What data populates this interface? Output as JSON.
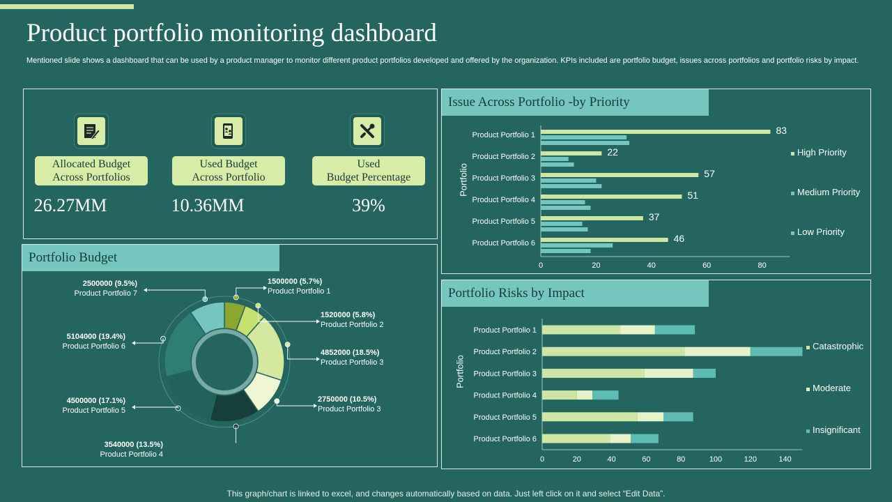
{
  "page": {
    "title": "Product portfolio monitoring dashboard",
    "subtitle": "Mentioned slide shows a dashboard that can be used by a product manager to monitor different product portfolios developed and offered by the organization. KPIs included are portfolio budget, issues across portfolios and portfolio risks by impact.",
    "footer": "This graph/chart is linked to excel,  and changes automatically based on data. Just left click on it and select “Edit Data”."
  },
  "kpis": [
    {
      "icon": "document-edit-icon",
      "label": "Allocated Budget\nAcross Portfolios",
      "value": "26.27MM"
    },
    {
      "icon": "mobile-users-icon",
      "label": "Used Budget\nAcross Portfolio",
      "value": "10.36MM"
    },
    {
      "icon": "tools-icon",
      "label": "Used\nBudget Percentage",
      "value": "39%"
    }
  ],
  "panels": {
    "portfolio_budget": "Portfolio Budget",
    "issues": "Issue Across Portfolio -by Priority",
    "risks": "Portfolio Risks by Impact"
  },
  "colors": {
    "background": "#256560",
    "header": "#74c6bf",
    "high": "#cde6a3",
    "medium": "#74c6bf",
    "low": "#74c6bf",
    "catastrophic": "#cde6a3",
    "moderate": "#e6f2c8",
    "insignificant": "#5fbcb4"
  },
  "chart_data": [
    {
      "type": "pie",
      "title": "Portfolio Budget",
      "slices": [
        {
          "value": 1500000,
          "pct": "5.7%",
          "label": "1500000 (5.7%)",
          "name": "Product Portfolio 1",
          "color": "#8aa62e"
        },
        {
          "value": 1520000,
          "pct": "5.8%",
          "label": "1520000 (5.8%)",
          "name": "Product Portfolio 2",
          "color": "#c5e06c"
        },
        {
          "value": 4852000,
          "pct": "18.5%",
          "label": "4852000 (18.5%)",
          "name": "Product Portfolio 3",
          "color": "#d4e8a0"
        },
        {
          "value": 2750000,
          "pct": "10.5%",
          "label": "2750000 (10.5%)",
          "name": "Product Portfolio 3",
          "color": "#eef6d4"
        },
        {
          "value": 3540000,
          "pct": "13.5%",
          "label": "3540000 (13.5%)",
          "name": "Product Portfolio 4",
          "color": "#163e3a"
        },
        {
          "value": 4500000,
          "pct": "17.1%",
          "label": "4500000 (17.1%)",
          "name": "Product Portfolio 5",
          "color": "#21625b"
        },
        {
          "value": 5104000,
          "pct": "19.4%",
          "label": "5104000 (19.4%)",
          "name": "Product Portfolio 6",
          "color": "#2f7e75"
        },
        {
          "value": 2500000,
          "pct": "9.5%",
          "label": "2500000 (9.5%)",
          "name": "Product Portfolio 7",
          "color": "#74c6bf"
        }
      ]
    },
    {
      "type": "bar",
      "orientation": "horizontal",
      "title": "Issue Across Portfolio -by Priority",
      "ylabel": "Portfolio",
      "categories": [
        "Product Portfolio 1",
        "Product Portfolio 2",
        "Product Portfolio 3",
        "Product Portfolio 4",
        "Product Portfolio 5",
        "Product Portfolio 6"
      ],
      "series": [
        {
          "name": "High Priority",
          "values": [
            83,
            22,
            57,
            51,
            37,
            46
          ],
          "labels": [
            "83",
            "22",
            "57",
            "51",
            "37",
            "46"
          ],
          "color": "#cde6a3"
        },
        {
          "name": "Medium Priority",
          "values": [
            31,
            10,
            20,
            16,
            15,
            26
          ],
          "color": "#74c6bf"
        },
        {
          "name": "Low Priority",
          "values": [
            32,
            12,
            22,
            18,
            17,
            18
          ],
          "color": "#74c6bf"
        }
      ],
      "xticks": [
        "0",
        "20",
        "40",
        "60",
        "80"
      ],
      "xlim": [
        0,
        90
      ]
    },
    {
      "type": "bar",
      "orientation": "horizontal",
      "stacked": true,
      "title": "Portfolio Risks by Impact",
      "ylabel": "Portfolio",
      "categories": [
        "Product Portfolio 1",
        "Product Portfolio 2",
        "Product Portfolio 3",
        "Product Portfolio 4",
        "Product Portfolio 5",
        "Product Portfolio 6"
      ],
      "series": [
        {
          "name": "Catastrophic",
          "values": [
            45,
            82,
            59,
            20,
            55,
            39
          ],
          "color": "#cde6a3"
        },
        {
          "name": "Moderate",
          "values": [
            20,
            38,
            28,
            9,
            15,
            12
          ],
          "color": "#e6f2c8"
        },
        {
          "name": "Insignificant",
          "values": [
            23,
            30,
            13,
            15,
            17,
            16
          ],
          "color": "#5fbcb4"
        }
      ],
      "xticks": [
        "0",
        "20",
        "40",
        "60",
        "80",
        "100",
        "120",
        "140"
      ],
      "xlim": [
        0,
        150
      ]
    }
  ]
}
